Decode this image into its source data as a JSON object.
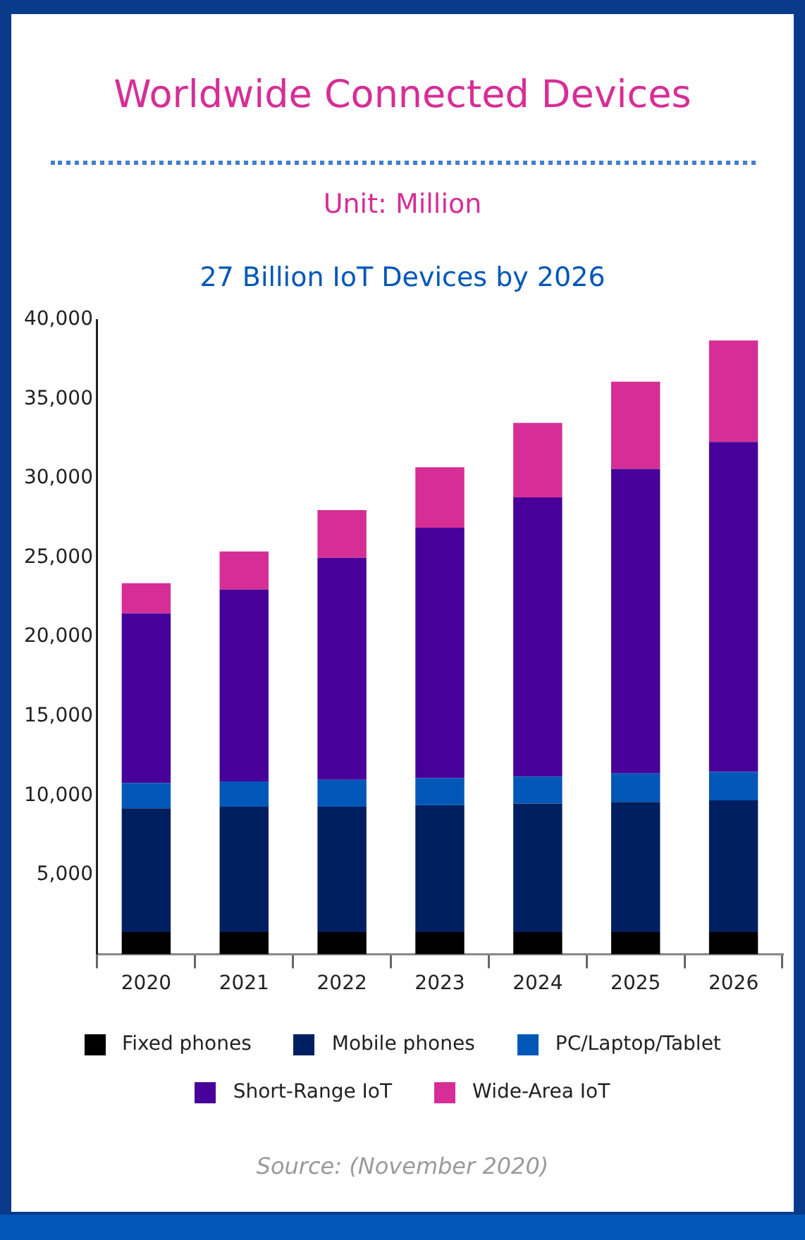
{
  "chart_data": {
    "type": "bar",
    "title": "Worldwide Connected Devices",
    "subtitle": "Unit: Million",
    "annotations": [
      "27 Billion IoT Devices by 2026",
      "Source: (November 2020)"
    ],
    "categories": [
      "2020",
      "2021",
      "2022",
      "2023",
      "2024",
      "2025",
      "2026"
    ],
    "stacked": true,
    "legend": "bottom",
    "grid": false,
    "ylim": [
      0,
      40000
    ],
    "yticks": [
      {
        "value": 5000,
        "label": "5,000"
      },
      {
        "value": 10000,
        "label": "10,000"
      },
      {
        "value": 15000,
        "label": "15,000"
      },
      {
        "value": 20000,
        "label": "20,000"
      },
      {
        "value": 25000,
        "label": "25,000"
      },
      {
        "value": 30000,
        "label": "30,000"
      },
      {
        "value": 35000,
        "label": "35,000"
      },
      {
        "value": 40000,
        "label": "40,000"
      }
    ],
    "series": [
      {
        "name": "Fixed phones",
        "color": "#000000",
        "values": [
          1400,
          1400,
          1400,
          1400,
          1400,
          1400,
          1400
        ]
      },
      {
        "name": "Mobile phones",
        "color": "#001f60",
        "values": [
          7800,
          7900,
          7900,
          8000,
          8100,
          8200,
          8300
        ]
      },
      {
        "name": "PC/Laptop/Tablet",
        "color": "#0057b8",
        "values": [
          1600,
          1600,
          1700,
          1700,
          1700,
          1800,
          1800
        ]
      },
      {
        "name": "Short-Range IoT",
        "color": "#470099",
        "values": [
          10700,
          12100,
          14000,
          15800,
          17600,
          19200,
          20800
        ]
      },
      {
        "name": "Wide-Area IoT",
        "color": "#d62e96",
        "values": [
          1900,
          2400,
          3000,
          3800,
          4700,
          5500,
          6400
        ]
      }
    ]
  }
}
